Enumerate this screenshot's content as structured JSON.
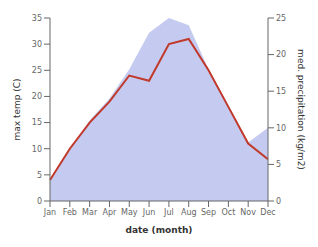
{
  "chart_data": {
    "type": "line",
    "categories": [
      "Jan",
      "Feb",
      "Mar",
      "Apr",
      "May",
      "Jun",
      "Jul",
      "Aug",
      "Sep",
      "Oct",
      "Nov",
      "Dec"
    ],
    "series": [
      {
        "type": "area",
        "axis": "y2",
        "color": "#c5caf0",
        "values": [
          3,
          7,
          11,
          14,
          18,
          23,
          25,
          24,
          18,
          13,
          8,
          10
        ]
      },
      {
        "color": "#c0392b",
        "values": [
          4,
          10,
          15,
          19,
          24,
          23,
          30,
          31,
          25,
          18,
          11,
          8
        ]
      }
    ],
    "xlabel": "date (month)",
    "ylabel": "max temp (C)",
    "y2label": "med. precipitation (kg/m2)",
    "ylim": [
      0,
      35
    ],
    "yticks": [
      0,
      5,
      10,
      15,
      20,
      25,
      30,
      35
    ],
    "y2lim": [
      0,
      25
    ],
    "y2ticks": [
      0,
      5,
      10,
      15,
      20,
      25
    ],
    "grid": false
  }
}
